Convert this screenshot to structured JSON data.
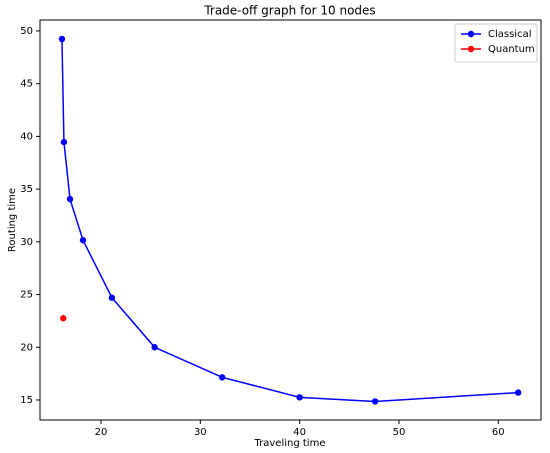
{
  "chart_data": {
    "type": "line",
    "title": "Trade-off graph for 10 nodes",
    "x_label": "Traveling time",
    "y_label": "Routing time",
    "series": [
      {
        "name": "Classical",
        "color": "#0000ff",
        "x": [
          16.07,
          16.27,
          16.88,
          18.19,
          21.1,
          25.4,
          32.2,
          40.0,
          47.6,
          62.0
        ],
        "values": [
          49.24,
          39.46,
          34.05,
          30.15,
          24.7,
          20.0,
          17.15,
          15.25,
          14.86,
          15.7
        ]
      },
      {
        "name": "Quantum",
        "color": "#ff0000",
        "x": [
          16.2
        ],
        "values": [
          22.75
        ]
      }
    ],
    "xlim": [
      13.86,
      64.3
    ],
    "xticks": [
      20,
      30,
      40,
      50,
      60
    ],
    "ylim": [
      13.1,
      51.04
    ],
    "yticks": [
      15,
      20,
      25,
      30,
      35,
      40,
      45,
      50
    ],
    "grid": false,
    "legend": "upper right"
  }
}
